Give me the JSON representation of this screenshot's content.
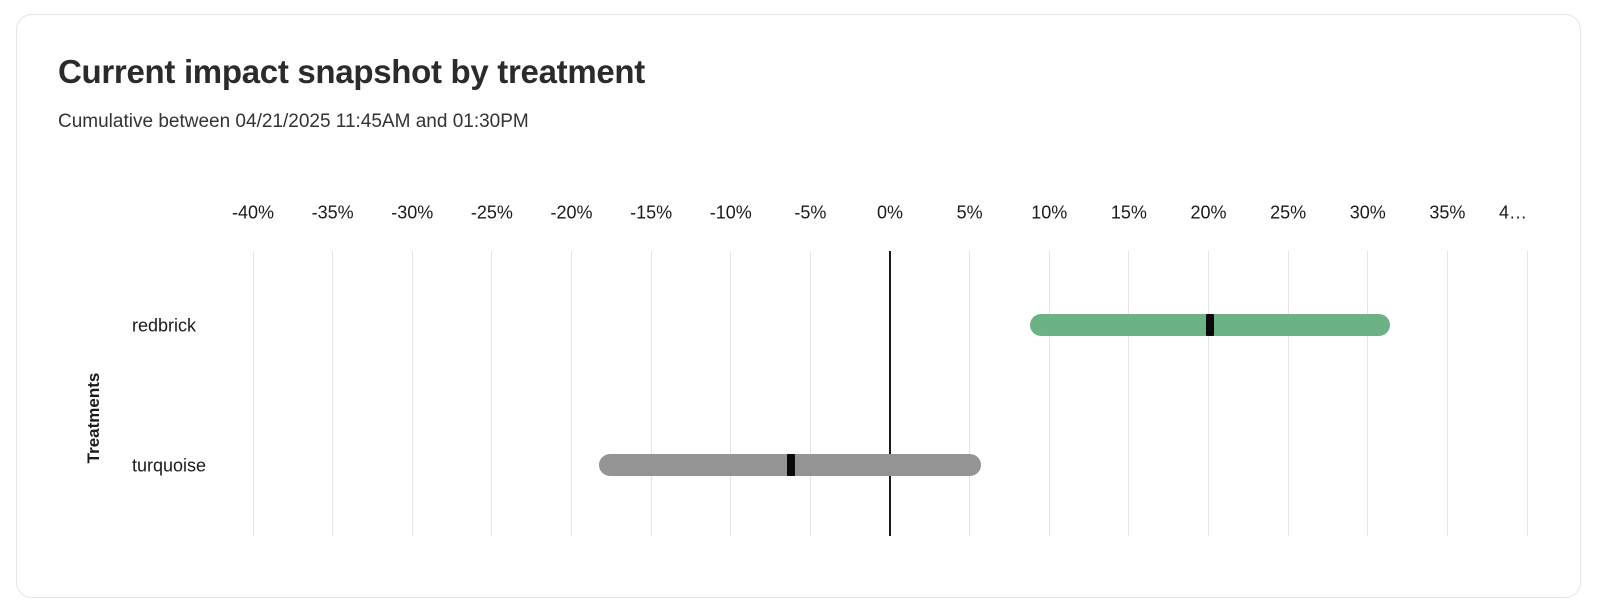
{
  "card": {
    "title": "Current impact snapshot by treatment",
    "subtitle": "Cumulative between 04/21/2025 11:45AM and 01:30PM"
  },
  "chart_data": {
    "type": "bar",
    "subtype": "horizontal-range-interval",
    "title": "Current impact snapshot by treatment",
    "subtitle": "Cumulative between 04/21/2025 11:45AM and 01:30PM",
    "xlabel": "",
    "ylabel": "Treatments",
    "categories": [
      "redbrick",
      "turquoise"
    ],
    "series": [
      {
        "name": "redbrick",
        "low": 8.8,
        "mid": 20.1,
        "high": 31.4,
        "color": "#6DB287"
      },
      {
        "name": "turquoise",
        "low": -18.3,
        "mid": -6.2,
        "high": 5.7,
        "color": "#949494"
      }
    ],
    "units": "%",
    "x_axis": {
      "min": -40,
      "max": 40,
      "step": 5,
      "tick_values": [
        -40,
        -35,
        -30,
        -25,
        -20,
        -15,
        -10,
        -5,
        0,
        5,
        10,
        15,
        20,
        25,
        30,
        35,
        40
      ],
      "tick_labels": [
        "-40%",
        "-35%",
        "-30%",
        "-25%",
        "-20%",
        "-15%",
        "-10%",
        "-5%",
        "0%",
        "5%",
        "10%",
        "15%",
        "20%",
        "25%",
        "30%",
        "35%",
        "4…"
      ],
      "grid": true,
      "zero_line": true
    },
    "legend": "none",
    "colors": {
      "grid": "#e4e4e4",
      "zero_line": "#1a1a1a",
      "marker": "#0a0a0a",
      "text": "#1a1a1a",
      "title": "#2b2b2b",
      "subtitle": "#333333"
    }
  }
}
